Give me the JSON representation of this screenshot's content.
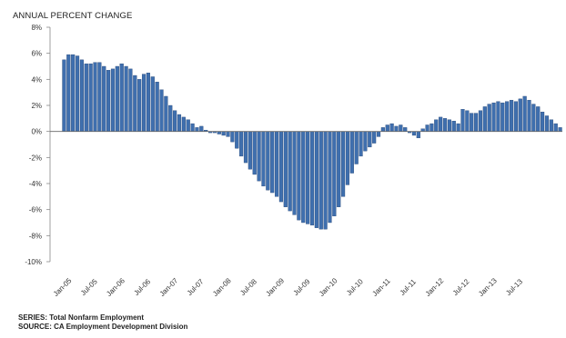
{
  "chart_data": {
    "type": "bar",
    "ylabel": "ANNUAL PERCENT CHANGE",
    "ylim": [
      -10,
      8
    ],
    "y_ticks": [
      "8%",
      "6%",
      "4%",
      "2%",
      "0%",
      "-2%",
      "-4%",
      "-6%",
      "-8%",
      "-10%"
    ],
    "y_tick_values": [
      8,
      6,
      4,
      2,
      0,
      -2,
      -4,
      -6,
      -8,
      -10
    ],
    "x_ticks": [
      "Jan-05",
      "Jul-05",
      "Jan-06",
      "Jul-06",
      "Jan-07",
      "Jul-07",
      "Jan-08",
      "Jul-08",
      "Jan-09",
      "Jul-09",
      "Jan-10",
      "Jul-10",
      "Jan-11",
      "Jul-11",
      "Jan-12",
      "Jul-12",
      "Jan-13",
      "Jul-13"
    ],
    "x_tick_index": [
      0,
      6,
      12,
      18,
      24,
      30,
      36,
      42,
      48,
      54,
      60,
      66,
      72,
      78,
      84,
      90,
      96,
      102
    ],
    "values": [
      5.5,
      5.9,
      5.9,
      5.8,
      5.5,
      5.2,
      5.2,
      5.3,
      5.3,
      5.0,
      4.7,
      4.8,
      5.0,
      5.2,
      5.0,
      4.8,
      4.3,
      4.0,
      4.4,
      4.5,
      4.2,
      3.8,
      3.2,
      2.7,
      2.0,
      1.6,
      1.3,
      1.1,
      0.9,
      0.6,
      0.3,
      0.4,
      0.1,
      -0.1,
      -0.1,
      -0.2,
      -0.3,
      -0.4,
      -0.8,
      -1.3,
      -1.9,
      -2.4,
      -2.9,
      -3.3,
      -3.8,
      -4.2,
      -4.5,
      -4.7,
      -5.0,
      -5.4,
      -5.8,
      -6.1,
      -6.4,
      -6.8,
      -7.0,
      -7.1,
      -7.2,
      -7.4,
      -7.5,
      -7.5,
      -7.0,
      -6.5,
      -5.8,
      -5.0,
      -4.1,
      -3.2,
      -2.5,
      -1.9,
      -1.5,
      -1.2,
      -0.9,
      -0.4,
      0.3,
      0.5,
      0.6,
      0.4,
      0.5,
      0.3,
      -0.1,
      -0.3,
      -0.5,
      0.2,
      0.5,
      0.6,
      0.9,
      1.1,
      1.0,
      0.9,
      0.8,
      0.6,
      1.7,
      1.6,
      1.4,
      1.4,
      1.6,
      1.9,
      2.1,
      2.2,
      2.3,
      2.2,
      2.3,
      2.4,
      2.3,
      2.5,
      2.7,
      2.4,
      2.1,
      1.9,
      1.5,
      1.2,
      0.9,
      0.6,
      0.3
    ],
    "bar_color": "#3f6fae",
    "bar_edge_color": "#1f3f6f",
    "grid": false,
    "legend": "none",
    "footer": {
      "series": "SERIES: Total Nonfarm Employment",
      "source": "SOURCE:  CA Employment Development Division"
    }
  }
}
